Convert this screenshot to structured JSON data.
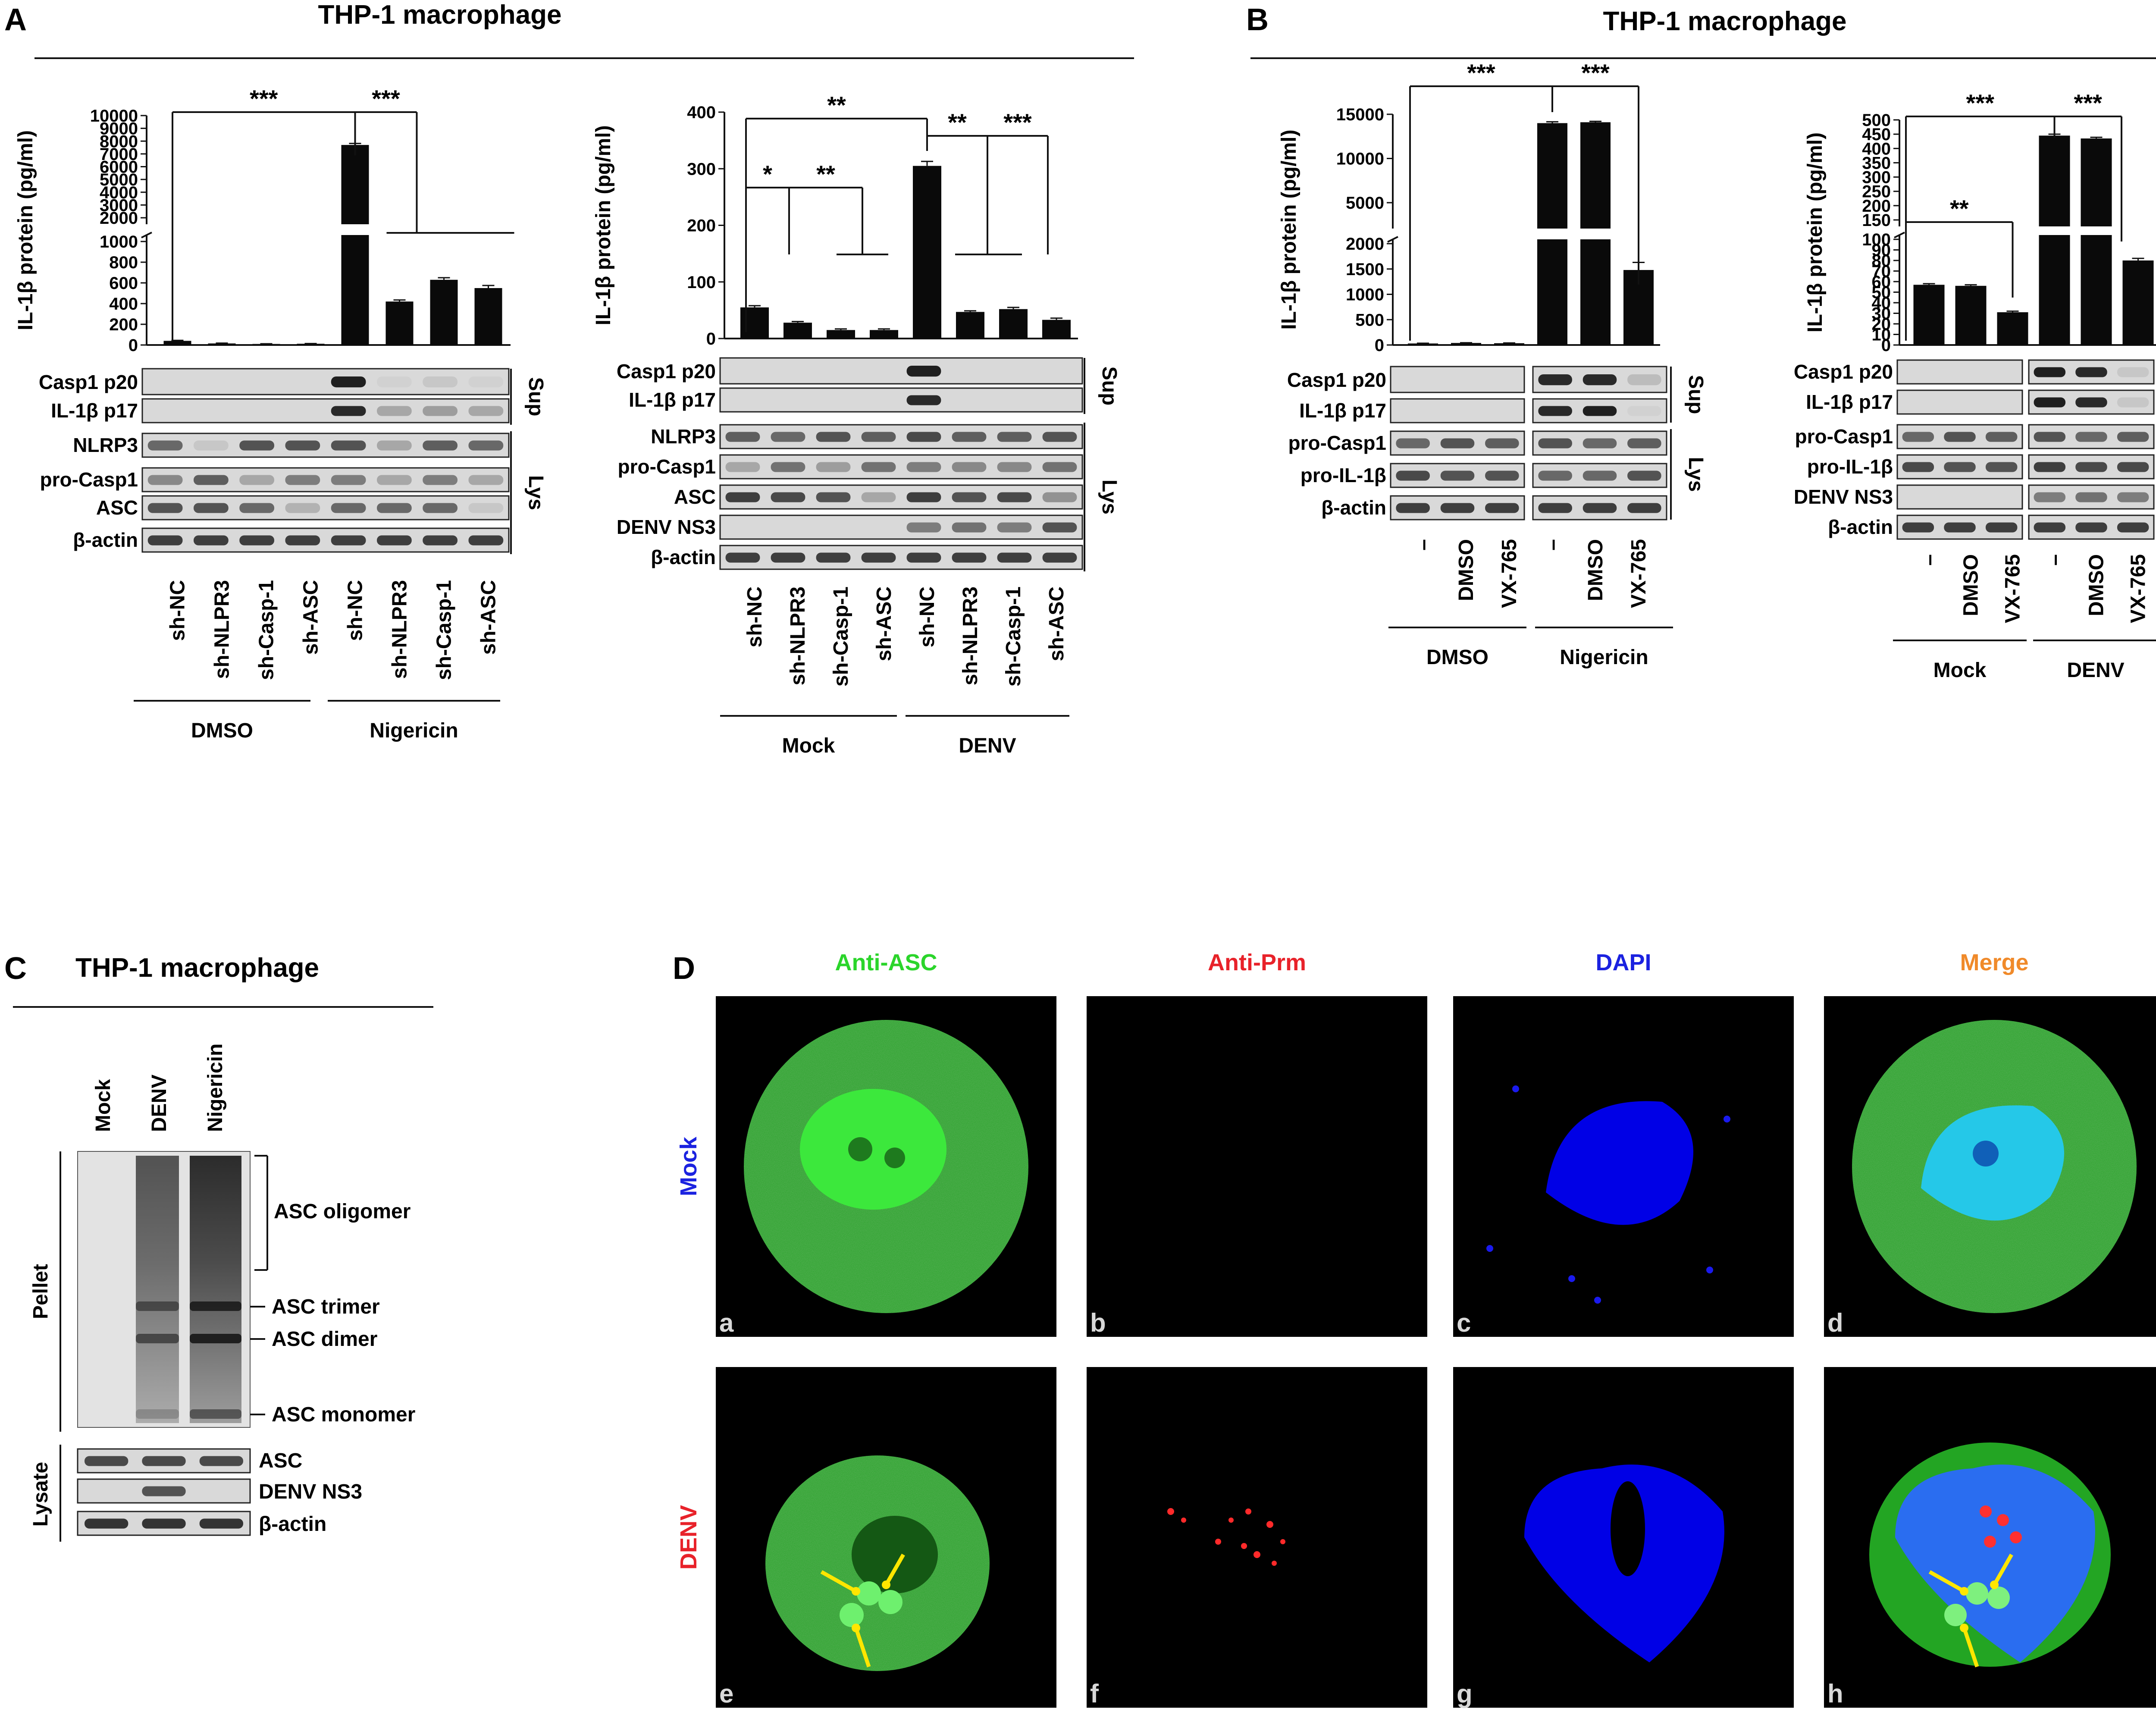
{
  "figure": {
    "panel_letters": [
      "A",
      "B",
      "C",
      "D"
    ],
    "titles": {
      "A": "THP-1 macrophage",
      "B": "THP-1 macrophage",
      "C": "THP-1 macrophage"
    },
    "y_axis_label": "IL-1β protein (pg/ml)",
    "side_labels": {
      "sup": "Sup",
      "lys": "Lys"
    },
    "colors": {
      "bar": "#0a0a0a",
      "line": "#111111",
      "green": "#2bd52b",
      "red": "#e8222a",
      "blue": "#1b22e0",
      "merge": "#f08a2a"
    }
  },
  "chart_data": [
    {
      "id": "A-left",
      "type": "bar",
      "categories": [
        "sh-NC",
        "sh-NLPR3",
        "sh-Casp-1",
        "sh-ASC",
        "sh-NC",
        "sh-NLPR3",
        "sh-Casp-1",
        "sh-ASC"
      ],
      "values": [
        40,
        15,
        10,
        12,
        7700,
        420,
        630,
        550
      ],
      "error": [
        5,
        3,
        2,
        2,
        120,
        15,
        20,
        25
      ],
      "groups": [
        "DMSO",
        "Nigericin"
      ],
      "ylabel": "IL-1β protein (pg/ml)",
      "axis_break": true,
      "y_ticks_lower": [
        0,
        200,
        400,
        600,
        800,
        1000
      ],
      "y_ticks_upper": [
        2000,
        3000,
        4000,
        5000,
        6000,
        7000,
        8000,
        9000,
        10000
      ],
      "significance": [
        "***",
        "***"
      ],
      "blots": {
        "sup": [
          "Casp1 p20",
          "IL-1β p17"
        ],
        "lys": [
          "NLRP3",
          "pro-Casp1",
          "ASC",
          "β-actin"
        ]
      }
    },
    {
      "id": "A-right",
      "type": "bar",
      "categories": [
        "sh-NC",
        "sh-NLPR3",
        "sh-Casp-1",
        "sh-ASC",
        "sh-NC",
        "sh-NLPR3",
        "sh-Casp-1",
        "sh-ASC"
      ],
      "values": [
        55,
        28,
        15,
        15,
        305,
        47,
        52,
        33
      ],
      "error": [
        3,
        2,
        2,
        2,
        8,
        2,
        3,
        3
      ],
      "groups": [
        "Mock",
        "DENV"
      ],
      "ylabel": "IL-1β protein (pg/ml)",
      "ylim": [
        0,
        400
      ],
      "y_ticks": [
        0,
        100,
        200,
        300,
        400
      ],
      "significance": [
        "**",
        "*",
        "**",
        "**",
        "***"
      ],
      "blots": {
        "sup": [
          "Casp1 p20",
          "IL-1β p17"
        ],
        "lys": [
          "NLRP3",
          "pro-Casp1",
          "ASC",
          "DENV NS3",
          "β-actin"
        ]
      }
    },
    {
      "id": "B-left",
      "type": "bar",
      "categories": [
        "–",
        "DMSO",
        "VX-765",
        "–",
        "DMSO",
        "VX-765"
      ],
      "values": [
        30,
        40,
        35,
        14000,
        14100,
        1480
      ],
      "error": [
        5,
        5,
        5,
        150,
        100,
        150
      ],
      "groups": [
        "DMSO",
        "Nigericin"
      ],
      "ylabel": "IL-1β protein (pg/ml)",
      "axis_break": true,
      "y_ticks_lower": [
        0,
        500,
        1000,
        1500,
        2000
      ],
      "y_ticks_upper": [
        5000,
        10000,
        15000
      ],
      "significance": [
        "***",
        "***"
      ],
      "blots": {
        "sup": [
          "Casp1 p20",
          "IL-1β p17"
        ],
        "lys": [
          "pro-Casp1",
          "pro-IL-1β",
          "β-actin"
        ]
      }
    },
    {
      "id": "B-right",
      "type": "bar",
      "categories": [
        "–",
        "DMSO",
        "VX-765",
        "–",
        "DMSO",
        "VX-765"
      ],
      "values": [
        57,
        56,
        31,
        445,
        435,
        80
      ],
      "error": [
        1,
        1,
        1,
        5,
        4,
        2
      ],
      "groups": [
        "Mock",
        "DENV"
      ],
      "ylabel": "IL-1β protein (pg/ml)",
      "axis_break": true,
      "y_ticks_lower": [
        0,
        10,
        20,
        30,
        40,
        50,
        60,
        70,
        80,
        90,
        100
      ],
      "y_ticks_upper": [
        150,
        200,
        250,
        300,
        350,
        400,
        450,
        500
      ],
      "significance": [
        "***",
        "***",
        "**"
      ],
      "blots": {
        "sup": [
          "Casp1 p20",
          "IL-1β p17"
        ],
        "lys": [
          "pro-Casp1",
          "pro-IL-1β",
          "DENV NS3",
          "β-actin"
        ]
      }
    }
  ],
  "panel_c": {
    "lanes": [
      "Mock",
      "DENV",
      "Nigericin"
    ],
    "section_labels": [
      "Pellet",
      "Lysate"
    ],
    "pellet_labels": [
      "ASC oligomer",
      "ASC trimer",
      "ASC dimer",
      "ASC monomer"
    ],
    "lysate_labels": [
      "ASC",
      "DENV NS3",
      "β-actin"
    ]
  },
  "panel_d": {
    "columns": [
      "Anti-ASC",
      "Anti-Prm",
      "DAPI",
      "Merge"
    ],
    "rows": [
      "Mock",
      "DENV"
    ],
    "tile_letters": [
      "a",
      "b",
      "c",
      "d",
      "e",
      "f",
      "g",
      "h"
    ]
  }
}
